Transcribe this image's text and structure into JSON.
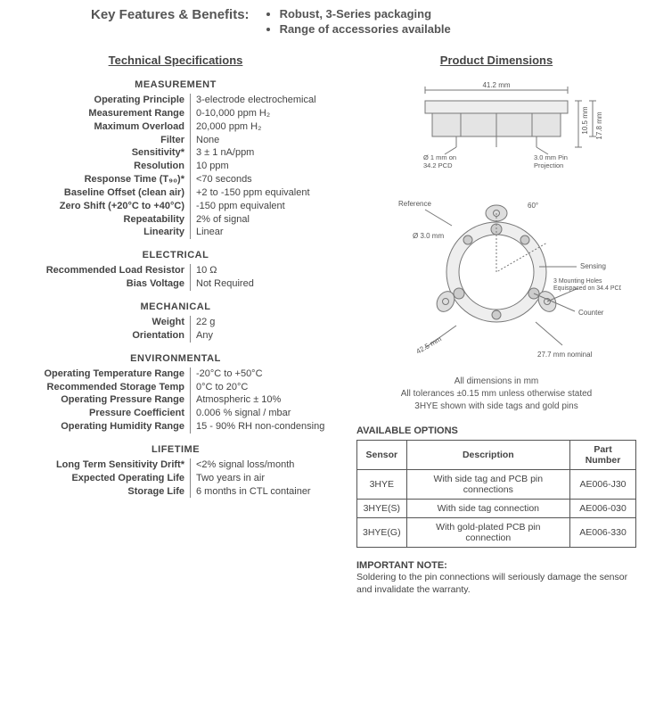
{
  "header": {
    "label": "Key Features & Benefits:",
    "bullets": [
      "Robust, 3-Series packaging",
      "Range of accessories available"
    ]
  },
  "left": {
    "title": "Technical Specifications",
    "groups": [
      {
        "head": "MEASUREMENT",
        "rows": [
          {
            "label": "Operating Principle",
            "value": "3-electrode electrochemical"
          },
          {
            "label": "Measurement Range",
            "value": "0-10,000 ppm H₂"
          },
          {
            "label": "Maximum Overload",
            "value": "20,000 ppm H₂"
          },
          {
            "label": "Filter",
            "value": "None"
          },
          {
            "label": "Sensitivity*",
            "value": "3 ± 1 nA/ppm"
          },
          {
            "label": "Resolution",
            "value": "10 ppm"
          },
          {
            "label": "Response Time (T₉₀)*",
            "value": "<70 seconds"
          },
          {
            "label": "Baseline Offset (clean air)",
            "value": "+2 to -150 ppm equivalent"
          },
          {
            "label": "Zero Shift (+20°C to +40°C)",
            "value": "-150 ppm equivalent"
          },
          {
            "label": "Repeatability",
            "value": "2% of signal"
          },
          {
            "label": "Linearity",
            "value": "Linear"
          }
        ]
      },
      {
        "head": "ELECTRICAL",
        "rows": [
          {
            "label": "Recommended Load Resistor",
            "value": "10 Ω"
          },
          {
            "label": "Bias Voltage",
            "value": "Not Required"
          }
        ]
      },
      {
        "head": "MECHANICAL",
        "rows": [
          {
            "label": "Weight",
            "value": "22 g"
          },
          {
            "label": "Orientation",
            "value": "Any"
          }
        ]
      },
      {
        "head": "ENVIRONMENTAL",
        "rows": [
          {
            "label": "Operating Temperature Range",
            "value": "-20°C  to +50°C"
          },
          {
            "label": "Recommended Storage Temp",
            "value": "0°C to 20°C"
          },
          {
            "label": "Operating Pressure Range",
            "value": "Atmospheric ± 10%"
          },
          {
            "label": "Pressure Coefficient",
            "value": "0.006 % signal / mbar"
          },
          {
            "label": "Operating Humidity Range",
            "value": "15 - 90% RH non-condensing"
          }
        ]
      },
      {
        "head": "LIFETIME",
        "rows": [
          {
            "label": "Long Term Sensitivity Drift*",
            "value": "<2% signal loss/month"
          },
          {
            "label": "Expected Operating Life",
            "value": "Two years in air"
          },
          {
            "label": "Storage Life",
            "value": "6 months in CTL container"
          }
        ]
      }
    ]
  },
  "right": {
    "title": "Product Dimensions",
    "diagram": {
      "top_view": {
        "width_mm": 41.2,
        "height_total_mm": 17.8,
        "body_height_mm": 10.5,
        "pin_dia_mm": 1.0,
        "pcd_mm": 34.2,
        "pin_projection_mm": 3.0,
        "labels": {
          "width": "41.2 mm",
          "height_total": "17.8 mm",
          "body_height": "10.5 mm",
          "pin": "Ø 1 mm on\n34.2 PCD",
          "proj": "3.0 mm Pin\nProjection"
        }
      },
      "bottom_view": {
        "outer_dia_nominal_mm": 27.7,
        "tab_angle_deg": 60,
        "mount_hole_dia_mm": 3.0,
        "mount_pcd_mm": 34.4,
        "tab_span_mm": 42.5,
        "labels": {
          "reference": "Reference",
          "sensing": "Sensing",
          "counter": "Counter",
          "angle": "60°",
          "hole": "Ø 3.0 mm",
          "mount": "3 Mounting Holes\nEquispaced on 34.4 PCD",
          "span": "42.5 mm",
          "outer": "27.7 mm nominal"
        }
      },
      "stroke_color": "#777",
      "text_color": "#555",
      "font_size_pt": 7
    },
    "notes": [
      "All dimensions in mm",
      "All tolerances ±0.15 mm unless otherwise stated",
      "3HYE shown with side tags and gold pins"
    ],
    "options": {
      "head": "AVAILABLE OPTIONS",
      "columns": [
        "Sensor",
        "Description",
        "Part Number"
      ],
      "rows": [
        [
          "3HYE",
          "With side tag and PCB pin connections",
          "AE006-J30"
        ],
        [
          "3HYE(S)",
          "With side tag connection",
          "AE006-030"
        ],
        [
          "3HYE(G)",
          "With gold-plated PCB pin connection",
          "AE006-330"
        ]
      ]
    },
    "important": {
      "head": "IMPORTANT NOTE:",
      "body": "Soldering to the pin connections will seriously damage the sensor and invalidate the warranty."
    }
  }
}
